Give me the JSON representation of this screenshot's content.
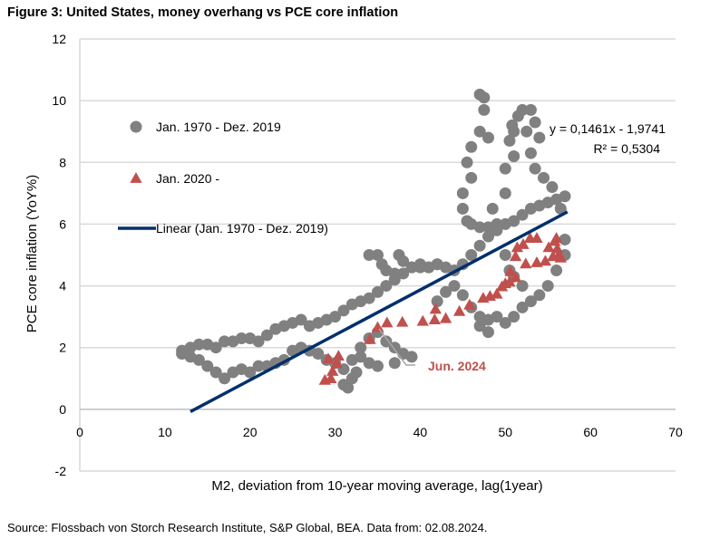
{
  "chart_data": {
    "type": "scatter",
    "title": "Figure 3: United States, money overhang vs PCE core inflation",
    "xlabel": "M2, deviation from 10-year moving average, lag(1year)",
    "ylabel": "PCE core inflation (YoY%)",
    "xlim": [
      0,
      70
    ],
    "ylim": [
      -2,
      12
    ],
    "xticks": [
      0,
      10,
      20,
      30,
      40,
      50,
      60,
      70
    ],
    "yticks": [
      -2,
      0,
      2,
      4,
      6,
      8,
      10,
      12
    ],
    "grid": "horizontal",
    "legend_position": "left",
    "series": [
      {
        "name": "Jan. 1970 - Dez. 2019",
        "marker": "circle",
        "color": "#808080",
        "points": [
          [
            12,
            1.9
          ],
          [
            13,
            2.0
          ],
          [
            14,
            2.1
          ],
          [
            15,
            2.1
          ],
          [
            16,
            2.0
          ],
          [
            17,
            2.2
          ],
          [
            18,
            2.2
          ],
          [
            19,
            2.3
          ],
          [
            20,
            2.3
          ],
          [
            21,
            2.2
          ],
          [
            22,
            2.4
          ],
          [
            23,
            2.6
          ],
          [
            24,
            2.7
          ],
          [
            25,
            2.8
          ],
          [
            26,
            2.9
          ],
          [
            27,
            2.7
          ],
          [
            28,
            2.8
          ],
          [
            29,
            2.9
          ],
          [
            30,
            3.0
          ],
          [
            31,
            3.2
          ],
          [
            32,
            3.4
          ],
          [
            33,
            3.5
          ],
          [
            34,
            3.6
          ],
          [
            35,
            3.8
          ],
          [
            36,
            4.0
          ],
          [
            37,
            4.2
          ],
          [
            38,
            4.4
          ],
          [
            39,
            4.6
          ],
          [
            40,
            4.7
          ],
          [
            41,
            4.6
          ],
          [
            42,
            4.7
          ],
          [
            43,
            4.6
          ],
          [
            34,
            5.0
          ],
          [
            35,
            5.0
          ],
          [
            35.5,
            4.7
          ],
          [
            36,
            4.5
          ],
          [
            37,
            4.4
          ],
          [
            37.5,
            5.0
          ],
          [
            38,
            4.8
          ],
          [
            39,
            4.6
          ],
          [
            40,
            4.6
          ],
          [
            41,
            4.6
          ],
          [
            42,
            4.7
          ],
          [
            12,
            1.8
          ],
          [
            13,
            1.7
          ],
          [
            14,
            1.6
          ],
          [
            15,
            1.4
          ],
          [
            16,
            1.2
          ],
          [
            17,
            1.0
          ],
          [
            18,
            1.2
          ],
          [
            19,
            1.3
          ],
          [
            20,
            1.2
          ],
          [
            21,
            1.4
          ],
          [
            22,
            1.4
          ],
          [
            23,
            1.5
          ],
          [
            24,
            1.6
          ],
          [
            25,
            1.9
          ],
          [
            26,
            2.0
          ],
          [
            27,
            1.9
          ],
          [
            28,
            1.8
          ],
          [
            29,
            1.6
          ],
          [
            30,
            1.5
          ],
          [
            31,
            1.3
          ],
          [
            31,
            0.8
          ],
          [
            32,
            1.0
          ],
          [
            32,
            1.6
          ],
          [
            33,
            2.0
          ],
          [
            34,
            2.3
          ],
          [
            35,
            2.5
          ],
          [
            36,
            2.2
          ],
          [
            37,
            2.0
          ],
          [
            38,
            1.8
          ],
          [
            39,
            1.7
          ],
          [
            37,
            1.5
          ],
          [
            35,
            1.4
          ],
          [
            34,
            1.5
          ],
          [
            33,
            1.7
          ],
          [
            32.5,
            1.2
          ],
          [
            31.5,
            0.7
          ],
          [
            42,
            3.5
          ],
          [
            43,
            3.8
          ],
          [
            44,
            4.0
          ],
          [
            45,
            3.7
          ],
          [
            46,
            3.3
          ],
          [
            47,
            3.0
          ],
          [
            48,
            2.9
          ],
          [
            49,
            3.0
          ],
          [
            47,
            2.7
          ],
          [
            48,
            2.5
          ],
          [
            50,
            2.8
          ],
          [
            51,
            3.0
          ],
          [
            52,
            3.3
          ],
          [
            53,
            3.5
          ],
          [
            54,
            3.7
          ],
          [
            55,
            4.0
          ],
          [
            56,
            4.5
          ],
          [
            57,
            5.0
          ],
          [
            57,
            5.5
          ],
          [
            44,
            4.5
          ],
          [
            45,
            4.7
          ],
          [
            46,
            5.0
          ],
          [
            47,
            5.3
          ],
          [
            48,
            5.6
          ],
          [
            49,
            5.8
          ],
          [
            50,
            6.0
          ],
          [
            51,
            6.1
          ],
          [
            52,
            6.3
          ],
          [
            53,
            6.5
          ],
          [
            54,
            6.6
          ],
          [
            55,
            6.7
          ],
          [
            56,
            6.8
          ],
          [
            57,
            6.9
          ],
          [
            56.5,
            6.5
          ],
          [
            55.5,
            7.2
          ],
          [
            54.5,
            7.5
          ],
          [
            53.5,
            7.8
          ],
          [
            53,
            8.3
          ],
          [
            52.5,
            9.0
          ],
          [
            52,
            9.7
          ],
          [
            53,
            9.7
          ],
          [
            53.5,
            9.3
          ],
          [
            54,
            8.8
          ],
          [
            47,
            10.2
          ],
          [
            47.5,
            10.1
          ],
          [
            47.5,
            9.7
          ],
          [
            47,
            9.0
          ],
          [
            48,
            8.8
          ],
          [
            46,
            8.5
          ],
          [
            45.5,
            8.0
          ],
          [
            46,
            7.5
          ],
          [
            45,
            7.0
          ],
          [
            45,
            6.5
          ],
          [
            45.5,
            6.1
          ],
          [
            46,
            6.0
          ],
          [
            47,
            5.9
          ],
          [
            48,
            5.9
          ],
          [
            50,
            7.0
          ],
          [
            50,
            7.8
          ],
          [
            51,
            8.2
          ],
          [
            50.5,
            8.7
          ],
          [
            51,
            9.0
          ],
          [
            50.8,
            9.2
          ],
          [
            51.5,
            9.5
          ],
          [
            48.5,
            6.5
          ],
          [
            49,
            6.0
          ],
          [
            50,
            5.0
          ],
          [
            50.5,
            4.5
          ],
          [
            51,
            4.3
          ],
          [
            52,
            4.0
          ]
        ]
      },
      {
        "name": "Jan. 2020 -",
        "marker": "triangle",
        "color": "#C0504D",
        "points": [
          [
            29.2,
            1.63
          ],
          [
            30.4,
            1.72
          ],
          [
            30.2,
            1.48
          ],
          [
            28.8,
            0.94
          ],
          [
            29.5,
            0.99
          ],
          [
            29.7,
            1.23
          ],
          [
            34.1,
            2.26
          ],
          [
            35.0,
            2.65
          ],
          [
            36.1,
            2.8
          ],
          [
            37.9,
            2.82
          ],
          [
            40.3,
            2.85
          ],
          [
            41.8,
            3.24
          ],
          [
            41.7,
            2.9
          ],
          [
            43.0,
            2.94
          ],
          [
            44.6,
            3.17
          ],
          [
            45.8,
            3.38
          ],
          [
            47.4,
            3.6
          ],
          [
            48.2,
            3.66
          ],
          [
            49.0,
            3.73
          ],
          [
            49.6,
            3.97
          ],
          [
            50.0,
            4.07
          ],
          [
            50.5,
            4.12
          ],
          [
            50.6,
            4.46
          ],
          [
            51.2,
            4.27
          ],
          [
            51.2,
            4.95
          ],
          [
            51.4,
            5.24
          ],
          [
            52.1,
            5.34
          ],
          [
            52.9,
            5.54
          ],
          [
            53.7,
            5.54
          ],
          [
            52.4,
            4.71
          ],
          [
            53.7,
            4.75
          ],
          [
            54.7,
            4.8
          ],
          [
            55.1,
            5.24
          ],
          [
            55.8,
            5.44
          ],
          [
            56.1,
            5.2
          ],
          [
            56.3,
            5.0
          ],
          [
            56.5,
            4.9
          ],
          [
            55.6,
            4.95
          ],
          [
            56.0,
            5.54
          ]
        ]
      },
      {
        "name": "Linear (Jan. 1970 - Dez. 2019)",
        "type": "line",
        "color": "#002F6C",
        "slope": 0.1461,
        "intercept": -1.9741,
        "x_range": [
          13,
          57.3
        ]
      }
    ],
    "equation": "y = 0,1461x - 1,9741",
    "r_squared": "R² = 0,5304",
    "annotation": {
      "text": "Jun. 2024",
      "x": 35.0,
      "y": 2.65
    }
  },
  "source": "Source: Flossbach von Storch Research Institute, S&P Global, BEA. Data from: 02.08.2024."
}
